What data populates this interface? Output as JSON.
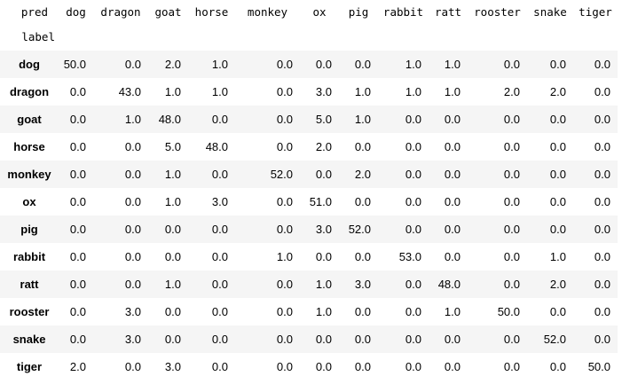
{
  "table": {
    "columns_axis_label": "pred",
    "index_axis_label": "label",
    "columns": [
      "dog",
      "dragon",
      "goat",
      "horse",
      "monkey",
      "ox",
      "pig",
      "rabbit",
      "ratt",
      "rooster",
      "snake",
      "tiger"
    ],
    "rows": [
      {
        "label": "dog",
        "values": [
          "50.0",
          "0.0",
          "2.0",
          "1.0",
          "0.0",
          "0.0",
          "0.0",
          "1.0",
          "1.0",
          "0.0",
          "0.0",
          "0.0"
        ]
      },
      {
        "label": "dragon",
        "values": [
          "0.0",
          "43.0",
          "1.0",
          "1.0",
          "0.0",
          "3.0",
          "1.0",
          "1.0",
          "1.0",
          "2.0",
          "2.0",
          "0.0"
        ]
      },
      {
        "label": "goat",
        "values": [
          "0.0",
          "1.0",
          "48.0",
          "0.0",
          "0.0",
          "5.0",
          "1.0",
          "0.0",
          "0.0",
          "0.0",
          "0.0",
          "0.0"
        ]
      },
      {
        "label": "horse",
        "values": [
          "0.0",
          "0.0",
          "5.0",
          "48.0",
          "0.0",
          "2.0",
          "0.0",
          "0.0",
          "0.0",
          "0.0",
          "0.0",
          "0.0"
        ]
      },
      {
        "label": "monkey",
        "values": [
          "0.0",
          "0.0",
          "1.0",
          "0.0",
          "52.0",
          "0.0",
          "2.0",
          "0.0",
          "0.0",
          "0.0",
          "0.0",
          "0.0"
        ]
      },
      {
        "label": "ox",
        "values": [
          "0.0",
          "0.0",
          "1.0",
          "3.0",
          "0.0",
          "51.0",
          "0.0",
          "0.0",
          "0.0",
          "0.0",
          "0.0",
          "0.0"
        ]
      },
      {
        "label": "pig",
        "values": [
          "0.0",
          "0.0",
          "0.0",
          "0.0",
          "0.0",
          "3.0",
          "52.0",
          "0.0",
          "0.0",
          "0.0",
          "0.0",
          "0.0"
        ]
      },
      {
        "label": "rabbit",
        "values": [
          "0.0",
          "0.0",
          "0.0",
          "0.0",
          "1.0",
          "0.0",
          "0.0",
          "53.0",
          "0.0",
          "0.0",
          "1.0",
          "0.0"
        ]
      },
      {
        "label": "ratt",
        "values": [
          "0.0",
          "0.0",
          "1.0",
          "0.0",
          "0.0",
          "1.0",
          "3.0",
          "0.0",
          "48.0",
          "0.0",
          "2.0",
          "0.0"
        ]
      },
      {
        "label": "rooster",
        "values": [
          "0.0",
          "3.0",
          "0.0",
          "0.0",
          "0.0",
          "1.0",
          "0.0",
          "0.0",
          "1.0",
          "50.0",
          "0.0",
          "0.0"
        ]
      },
      {
        "label": "snake",
        "values": [
          "0.0",
          "3.0",
          "0.0",
          "0.0",
          "0.0",
          "0.0",
          "0.0",
          "0.0",
          "0.0",
          "0.0",
          "52.0",
          "0.0"
        ]
      },
      {
        "label": "tiger",
        "values": [
          "2.0",
          "0.0",
          "3.0",
          "0.0",
          "0.0",
          "0.0",
          "0.0",
          "0.0",
          "0.0",
          "0.0",
          "0.0",
          "50.0"
        ]
      }
    ]
  },
  "colors": {
    "background": "#ffffff",
    "stripe": "#f5f5f5",
    "text": "#000000"
  }
}
